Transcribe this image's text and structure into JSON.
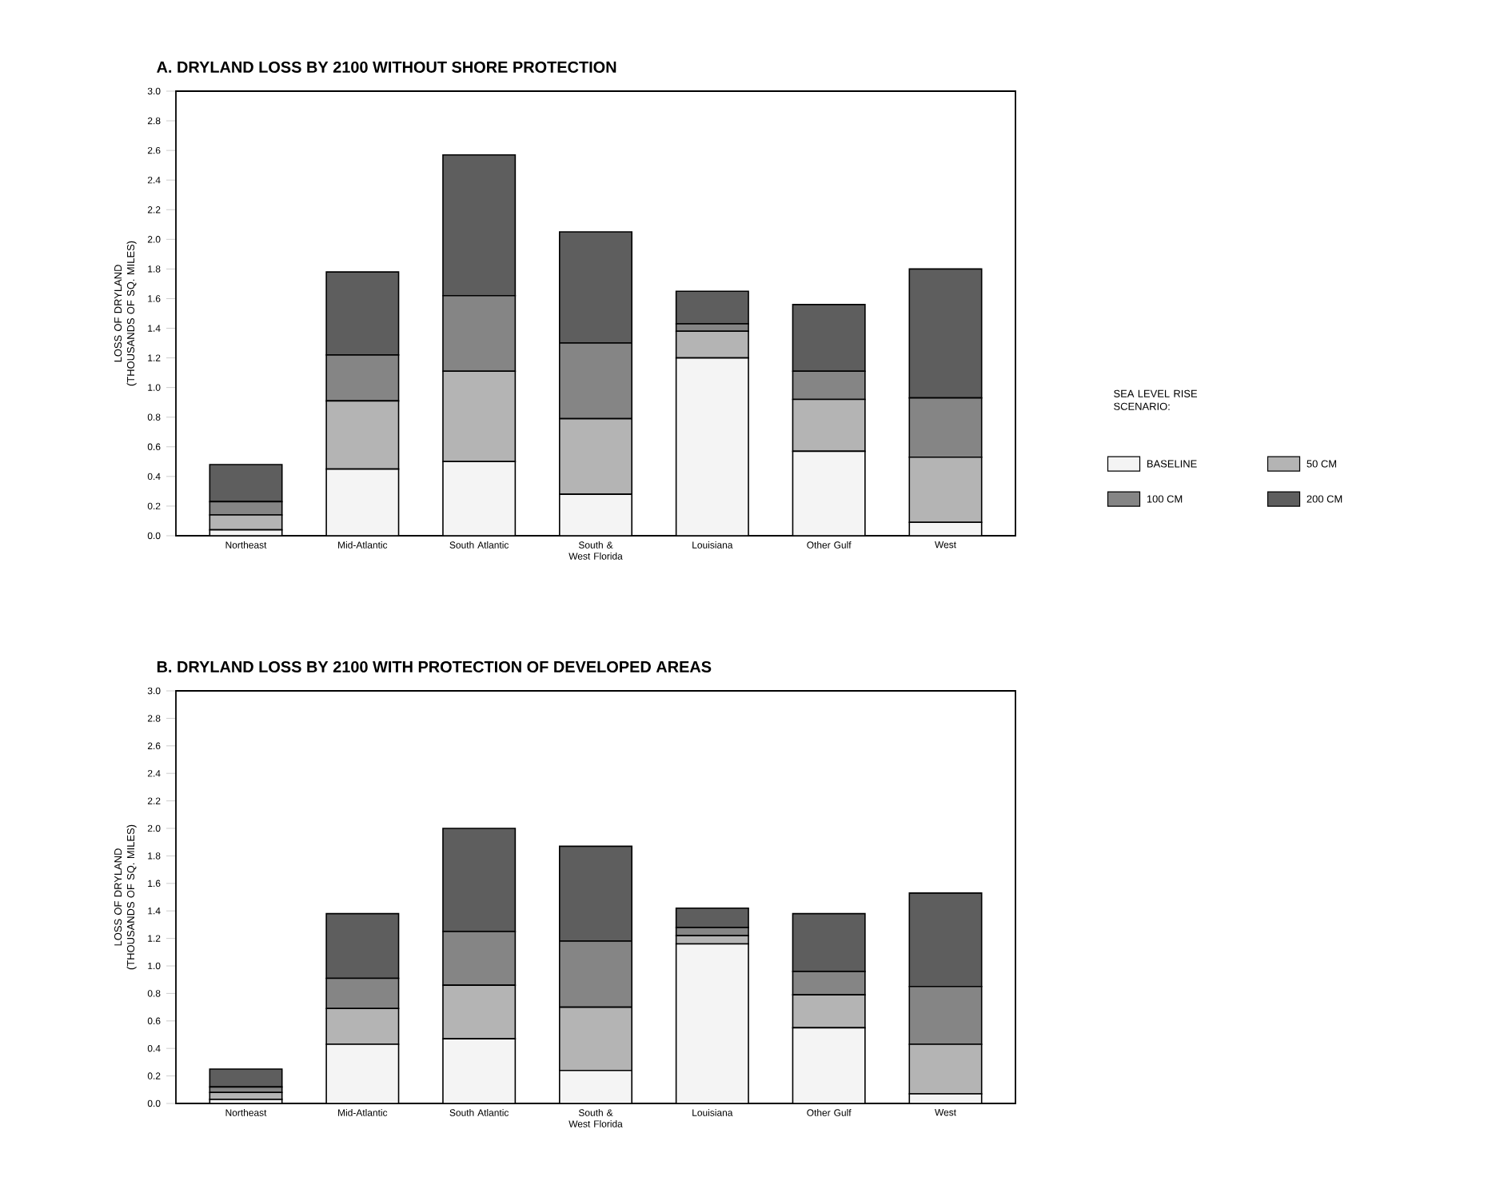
{
  "chart_data": [
    {
      "type": "bar",
      "title": "A. DRYLAND LOSS BY 2100 WITHOUT SHORE PROTECTION",
      "ylabel": "LOSS OF DRYLAND (THOUSANDS OF SQ. MILES)",
      "stacked": true,
      "legend": "right",
      "legend_title": "SEA LEVEL RISE SCENARIO:",
      "categories": [
        "Northeast",
        "Mid-Atlantic",
        "South Atlantic",
        "South & West Florida",
        "Louisiana",
        "Other Gulf",
        "West"
      ],
      "ylim": [
        0,
        3.0
      ],
      "yticks": [
        {
          "value": 0,
          "label": "0.0"
        },
        0.2,
        0.4,
        0.6,
        0.8,
        {
          "value": 1,
          "label": "1.0"
        },
        1.2,
        1.4,
        1.6,
        1.8,
        {
          "value": 2,
          "label": "2.0"
        },
        2.2,
        2.4,
        2.6,
        2.8,
        {
          "value": 3,
          "label": "3.0"
        }
      ],
      "series": [
        {
          "name": "BASELINE",
          "color": "#f4f4f4",
          "values": [
            0.04,
            0.45,
            0.5,
            0.28,
            1.2,
            0.57,
            0.09
          ]
        },
        {
          "name": "50 CM",
          "color": "#b4b4b4",
          "values": [
            0.1,
            0.46,
            0.61,
            0.51,
            0.18,
            0.35,
            0.44
          ]
        },
        {
          "name": "100 CM",
          "color": "#858585",
          "values": [
            0.09,
            0.31,
            0.51,
            0.51,
            0.05,
            0.19,
            0.4
          ]
        },
        {
          "name": "200 CM",
          "color": "#5e5e5e",
          "values": [
            0.25,
            0.56,
            0.95,
            0.75,
            0.22,
            0.45,
            0.87
          ]
        }
      ]
    },
    {
      "type": "bar",
      "title": "B. DRYLAND LOSS BY 2100 WITH PROTECTION OF DEVELOPED AREAS",
      "ylabel": "LOSS OF DRYLAND (THOUSANDS OF SQ. MILES)",
      "stacked": true,
      "categories": [
        "Northeast",
        "Mid-Atlantic",
        "South Atlantic",
        "South & West Florida",
        "Louisiana",
        "Other Gulf",
        "West"
      ],
      "ylim": [
        0,
        3.0
      ],
      "yticks": [
        {
          "value": 0,
          "label": "0.0"
        },
        0.2,
        0.4,
        0.6,
        0.8,
        {
          "value": 1,
          "label": "1.0"
        },
        1.2,
        1.4,
        1.6,
        1.8,
        {
          "value": 2,
          "label": "2.0"
        },
        2.2,
        2.4,
        2.6,
        2.8,
        {
          "value": 3,
          "label": "3.0"
        }
      ],
      "series": [
        {
          "color": "#f4f4f4",
          "values": [
            0.03,
            0.43,
            0.47,
            0.24,
            1.16,
            0.55,
            0.07
          ]
        },
        {
          "color": "#b4b4b4",
          "values": [
            0.05,
            0.26,
            0.39,
            0.46,
            0.06,
            0.24,
            0.36
          ]
        },
        {
          "color": "#858585",
          "values": [
            0.04,
            0.22,
            0.39,
            0.48,
            0.06,
            0.17,
            0.42
          ]
        },
        {
          "color": "#5e5e5e",
          "values": [
            0.13,
            0.47,
            0.75,
            0.69,
            0.14,
            0.42,
            0.68
          ]
        }
      ]
    }
  ]
}
